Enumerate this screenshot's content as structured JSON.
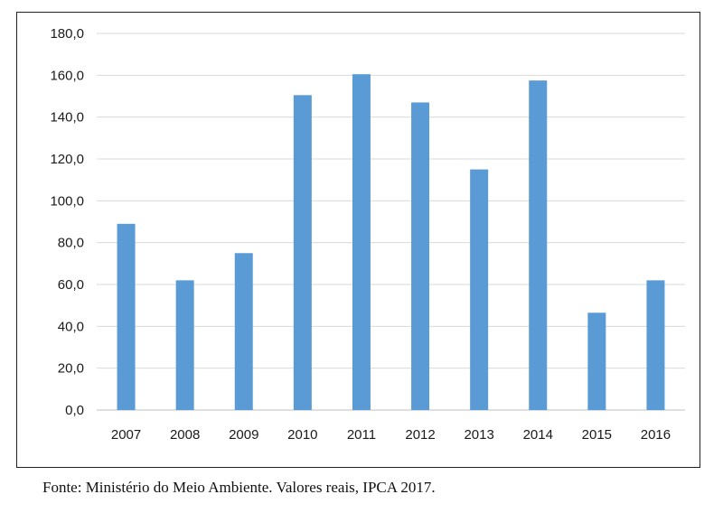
{
  "chart_data": {
    "type": "bar",
    "categories": [
      "2007",
      "2008",
      "2009",
      "2010",
      "2011",
      "2012",
      "2013",
      "2014",
      "2015",
      "2016"
    ],
    "values": [
      89.0,
      62.0,
      75.0,
      150.5,
      160.5,
      147.0,
      115.0,
      157.5,
      46.5,
      62.0
    ],
    "ylim": [
      0,
      180
    ],
    "yticks": [
      "0,0",
      "20,0",
      "40,0",
      "60,0",
      "80,0",
      "100,0",
      "120,0",
      "140,0",
      "160,0",
      "180,0"
    ],
    "grid": true,
    "bar_color": "#5b9bd5",
    "grid_color": "#d9d9d9",
    "legend": "none"
  },
  "caption": "Fonte: Ministério do Meio Ambiente. Valores reais, IPCA 2017."
}
